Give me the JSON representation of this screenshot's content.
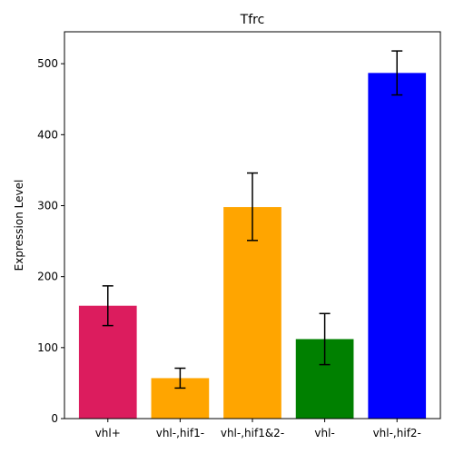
{
  "chart_data": {
    "type": "bar",
    "title": "Tfrc",
    "xlabel": "",
    "ylabel": "Expression Level",
    "categories": [
      "vhl+",
      "vhl-,hif1-",
      "vhl-,hif1&2-",
      "vhl-",
      "vhl-,hif2-"
    ],
    "values": [
      159,
      57,
      298,
      112,
      487
    ],
    "error_low": [
      131,
      43,
      251,
      76,
      456
    ],
    "error_high": [
      187,
      71,
      346,
      148,
      518
    ],
    "bar_colors": [
      "#dc1c5e",
      "#ffa500",
      "#ffa500",
      "#008000",
      "#0000ff"
    ],
    "ylim": [
      0,
      545
    ],
    "yticks": [
      0,
      100,
      200,
      300,
      400,
      500
    ],
    "grid": false,
    "legend": "none"
  }
}
